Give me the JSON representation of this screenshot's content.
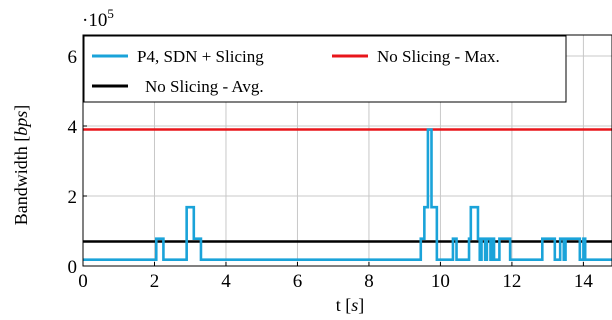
{
  "chart_data": {
    "type": "line",
    "title": "",
    "xlabel": "t",
    "xlabel_unit": "s",
    "ylabel": "Bandwidth",
    "ylabel_unit": "bps",
    "y_multiplier_label": "·10",
    "y_multiplier_exponent": "5",
    "xlim": [
      0,
      14.8
    ],
    "ylim": [
      0,
      6.6
    ],
    "x_ticks": [
      0,
      2,
      4,
      6,
      8,
      10,
      12,
      14
    ],
    "y_ticks": [
      0,
      2,
      4,
      6
    ],
    "grid": true,
    "legend_position": "top-left",
    "series": [
      {
        "name": "P4, SDN + Slicing",
        "color": "#1aa3d9",
        "step": true,
        "x": [
          0,
          2.05,
          2.25,
          2.9,
          3.1,
          3.3,
          9.45,
          9.55,
          9.65,
          9.75,
          9.9,
          10.35,
          10.45,
          10.8,
          10.85,
          11.05,
          11.1,
          11.15,
          11.25,
          11.3,
          11.4,
          11.45,
          11.5,
          11.65,
          11.7,
          11.95,
          12.85,
          12.95,
          13.2,
          13.35,
          13.45,
          13.5,
          13.6,
          13.65,
          13.9,
          14.0,
          14.05,
          14.8
        ],
        "values": [
          0.18,
          0.78,
          0.18,
          1.68,
          0.78,
          0.18,
          0.78,
          1.68,
          3.9,
          1.68,
          0.18,
          0.78,
          0.18,
          0.78,
          1.68,
          0.78,
          0.18,
          0.78,
          0.18,
          0.78,
          0.18,
          0.78,
          0.18,
          0.78,
          0.78,
          0.18,
          0.78,
          0.78,
          0.18,
          0.78,
          0.18,
          0.78,
          0.78,
          0.78,
          0.18,
          0.78,
          0.18,
          0.18
        ]
      },
      {
        "name": "No Slicing - Max.",
        "color": "#e8161b",
        "step": false,
        "x": [
          0,
          14.8
        ],
        "values": [
          3.9,
          3.9
        ]
      },
      {
        "name": "No Slicing - Avg.",
        "color": "#000000",
        "step": false,
        "x": [
          0,
          14.8
        ],
        "values": [
          0.7,
          0.7
        ]
      }
    ],
    "legend": {
      "items": [
        {
          "label": "P4, SDN + Slicing",
          "color": "#1aa3d9"
        },
        {
          "label": "No Slicing - Max.",
          "color": "#e8161b"
        },
        {
          "label": "No Slicing - Avg.",
          "color": "#000000"
        }
      ]
    }
  }
}
